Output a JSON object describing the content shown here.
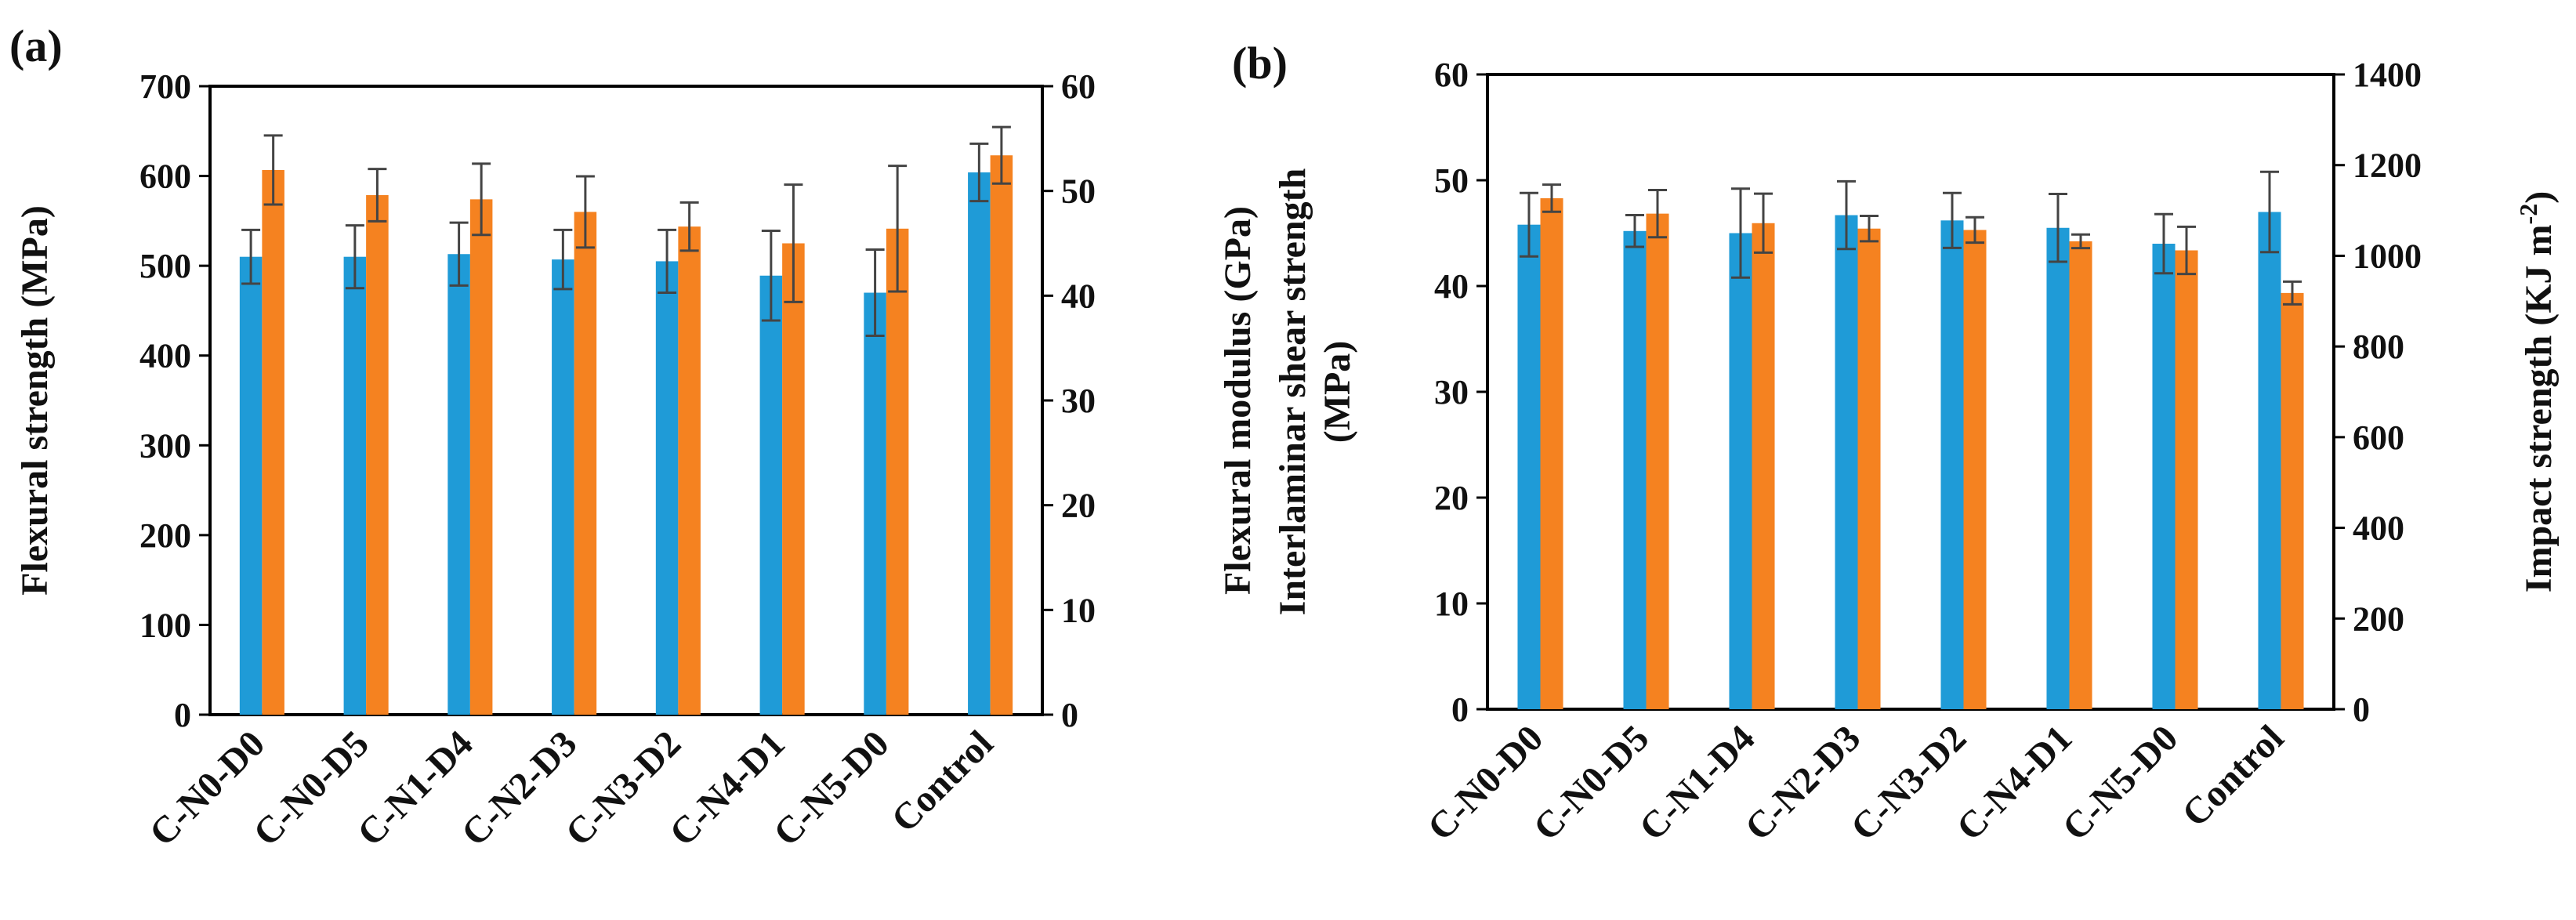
{
  "chart_data": [
    {
      "type": "bar",
      "panel_label": "(a)",
      "categories": [
        "C-N0-D0",
        "C-N0-D5",
        "C-N1-D4",
        "C-N2-D3",
        "C-N3-D2",
        "C-N4-D1",
        "C-N5-D0",
        "Control"
      ],
      "ylabel": "Flexural strength (MPa)",
      "ylabel2": "Flexural modulus (GPa)",
      "ylim": [
        0,
        700
      ],
      "ylim2": [
        0,
        60
      ],
      "yticks": [
        "0",
        "100",
        "200",
        "300",
        "400",
        "500",
        "600",
        "700"
      ],
      "yticks2": [
        "0",
        "10",
        "20",
        "30",
        "40",
        "50",
        "60"
      ],
      "series": [
        {
          "name": "Flexural strength",
          "axis": "left",
          "color": "#1f9bd7",
          "values": [
            510,
            510,
            513,
            507,
            505,
            489,
            470,
            604
          ],
          "errors": [
            30,
            35,
            35,
            33,
            35,
            50,
            48,
            32
          ]
        },
        {
          "name": "Flexural modulus",
          "axis": "right",
          "color": "#f58220",
          "values": [
            52.0,
            49.6,
            49.2,
            48.0,
            46.6,
            45.0,
            46.4,
            53.4
          ],
          "errors": [
            3.3,
            2.5,
            3.4,
            3.4,
            2.3,
            5.6,
            6.0,
            2.7
          ]
        }
      ]
    },
    {
      "type": "bar",
      "panel_label": "(b)",
      "categories": [
        "C-N0-D0",
        "C-N0-D5",
        "C-N1-D4",
        "C-N2-D3",
        "C-N3-D2",
        "C-N4-D1",
        "C-N5-D0",
        "Control"
      ],
      "ylabel": [
        "Interlaminar shear strength",
        "(MPa)"
      ],
      "ylabel2": "Impact strength (KJ m",
      "ylabel2_sup": "-2",
      "ylabel2_end": ")",
      "ylim": [
        0,
        60
      ],
      "ylim2": [
        0,
        1400
      ],
      "yticks": [
        "0",
        "10",
        "20",
        "30",
        "40",
        "50",
        "60"
      ],
      "yticks2": [
        "0",
        "200",
        "400",
        "600",
        "800",
        "1000",
        "1200",
        "1400"
      ],
      "series": [
        {
          "name": "Interlaminar shear strength",
          "axis": "left",
          "color": "#1f9bd7",
          "values": [
            45.8,
            45.2,
            45.0,
            46.7,
            46.2,
            45.5,
            44.0,
            47.0
          ],
          "errors": [
            3.0,
            1.5,
            4.2,
            3.2,
            2.6,
            3.2,
            2.8,
            3.8
          ]
        },
        {
          "name": "Impact strength",
          "axis": "right",
          "color": "#f58220",
          "values": [
            1127,
            1093,
            1072,
            1060,
            1057,
            1032,
            1012,
            918
          ],
          "errors": [
            30,
            52,
            65,
            28,
            28,
            15,
            52,
            25
          ]
        }
      ]
    }
  ]
}
